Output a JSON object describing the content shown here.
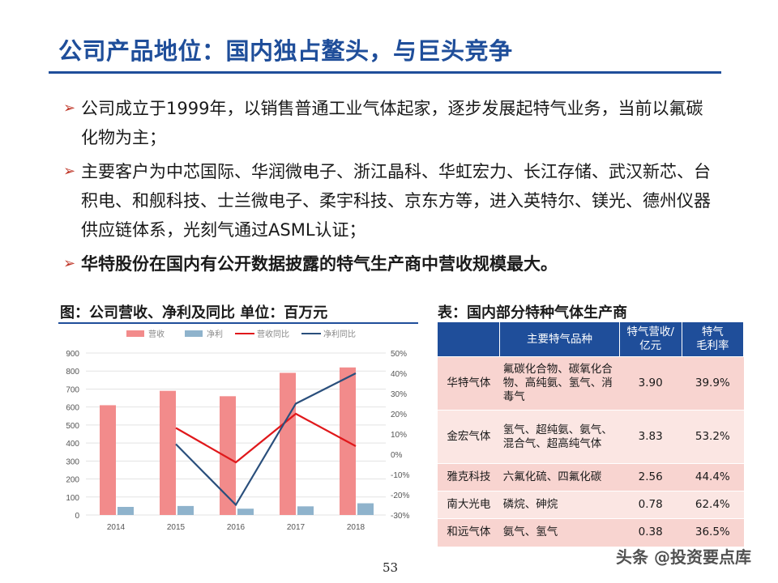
{
  "title": "公司产品地位：国内独占鳌头，与巨头竞争",
  "bullets": [
    "公司成立于1999年，以销售普通工业气体起家，逐步发展起特气业务，当前以氟碳化物为主；",
    "主要客户为中芯国际、华润微电子、浙江晶科、华虹宏力、长江存储、武汉新芯、台积电、和舰科技、士兰微电子、柔宇科技、京东方等，进入英特尔、镁光、德州仪器供应链体系，光刻气通过ASML认证；",
    "华特股份在国内有公开数据披露的特气生产商中营收规模最大。"
  ],
  "chart_heading": "图：公司营收、净利及同比     单位：百万元",
  "table_heading": "表：国内部分特种气体生产商",
  "chart_data": {
    "type": "bar",
    "categories": [
      "2014",
      "2015",
      "2016",
      "2017",
      "2018"
    ],
    "series": [
      {
        "name": "营收",
        "kind": "bar",
        "axis": "left",
        "color": "#f28b8b",
        "values": [
          610,
          690,
          660,
          790,
          820
        ]
      },
      {
        "name": "净利",
        "kind": "bar",
        "axis": "left",
        "color": "#8fb3cc",
        "values": [
          45,
          50,
          35,
          48,
          65
        ]
      },
      {
        "name": "营收同比",
        "kind": "line",
        "axis": "right",
        "color": "#e0181b",
        "values": [
          null,
          13,
          -4,
          20,
          4
        ]
      },
      {
        "name": "净利同比",
        "kind": "line",
        "axis": "right",
        "color": "#2a4f7c",
        "values": [
          null,
          5,
          -25,
          25,
          40
        ]
      }
    ],
    "ylim_left": [
      0,
      900
    ],
    "yticks_left": [
      "0",
      "100",
      "200",
      "300",
      "400",
      "500",
      "600",
      "700",
      "800",
      "900"
    ],
    "ylim_right": [
      -30,
      50
    ],
    "yticks_right": [
      "-30%",
      "-20%",
      "-10%",
      "0%",
      "10%",
      "20%",
      "30%",
      "40%",
      "50%"
    ],
    "legend_position": "top",
    "grid": true
  },
  "table": {
    "headers": [
      "",
      "主要特气品种",
      "特气营收/亿元",
      "特气毛利率"
    ],
    "header_lines": {
      "revenue": [
        "特气营收/",
        "亿元"
      ],
      "margin": [
        "特气",
        "毛利率"
      ]
    },
    "rows": [
      {
        "company": "华特气体",
        "products": "氟碳化合物、碳氧化合物、高纯氨、氢气、消毒气",
        "revenue": "3.90",
        "margin": "39.9%"
      },
      {
        "company": "金宏气体",
        "products": "氢气、超纯氨、氨气、混合气、超高纯气体",
        "revenue": "3.83",
        "margin": "53.2%"
      },
      {
        "company": "雅克科技",
        "products": "六氟化硫、四氟化碳",
        "revenue": "2.56",
        "margin": "44.4%"
      },
      {
        "company": "南大光电",
        "products": "磷烷、砷烷",
        "revenue": "0.78",
        "margin": "62.4%"
      },
      {
        "company": "和远气体",
        "products": "氨气、氢气",
        "revenue": "0.38",
        "margin": "36.5%"
      }
    ]
  },
  "page_number": "53",
  "watermark": "头条 @投资要点库"
}
